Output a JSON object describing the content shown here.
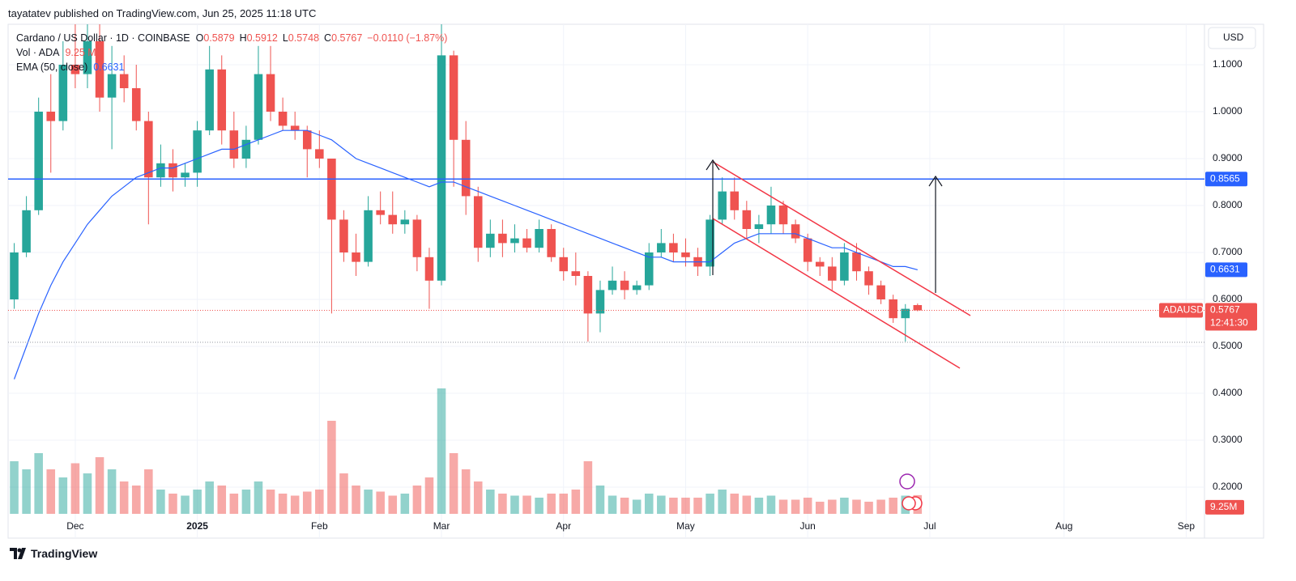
{
  "header": {
    "published": "tayatatev published on TradingView.com, Jun 25, 2025 11:18 UTC",
    "brand": "TradingView"
  },
  "chart_data": {
    "type": "candlestick",
    "legend": {
      "symbol": "Cardano / US Dollar · 1D · COINBASE",
      "o": "O",
      "h": "H",
      "l": "L",
      "c": "C",
      "change": "−0.0110 (−1.87%)",
      "vol": "Vol · ADA",
      "vol_value": "9.25 M"
    },
    "price_scale": {
      "currency": "USD",
      "symbol": "ADAUSD",
      "countdown": "12:41:30",
      "volume_label": "9.25M"
    },
    "up_color": "#26a69a",
    "down_color": "#ef5350",
    "categories": [
      null,
      null,
      null,
      null,
      null,
      "Dec",
      null,
      null,
      null,
      null,
      null,
      null,
      null,
      null,
      null,
      "2025",
      null,
      null,
      null,
      null,
      null,
      null,
      null,
      null,
      null,
      "Feb",
      null,
      null,
      null,
      null,
      null,
      null,
      null,
      null,
      null,
      "Mar",
      null,
      null,
      null,
      null,
      null,
      null,
      null,
      null,
      null,
      "Apr",
      null,
      null,
      null,
      null,
      null,
      null,
      null,
      null,
      null,
      "May",
      null,
      null,
      null,
      null,
      null,
      null,
      null,
      null,
      null,
      "Jun",
      null,
      null,
      null,
      null,
      null,
      null,
      null,
      null,
      null,
      "Jul",
      null,
      null,
      null,
      null,
      null,
      null,
      null,
      null,
      null,
      null,
      "Aug",
      null,
      null,
      null,
      null,
      null,
      null,
      null,
      null,
      null,
      "Sep",
      null
    ],
    "open": [
      0.6,
      0.7,
      0.79,
      1.0,
      0.98,
      1.1,
      1.08,
      1.15,
      1.03,
      1.08,
      1.05,
      0.98,
      0.86,
      0.89,
      0.86,
      0.87,
      0.96,
      1.09,
      0.96,
      0.9,
      0.94,
      1.08,
      1.0,
      0.97,
      0.96,
      0.92,
      0.9,
      0.77,
      0.7,
      0.68,
      0.79,
      0.78,
      0.76,
      0.77,
      0.69,
      0.64,
      1.12,
      0.94,
      0.82,
      0.71,
      0.74,
      0.72,
      0.73,
      0.71,
      0.75,
      0.69,
      0.66,
      0.65,
      0.57,
      0.62,
      0.64,
      0.62,
      0.63,
      0.7,
      0.72,
      0.7,
      0.69,
      0.67,
      0.77,
      0.83,
      0.79,
      0.75,
      0.76,
      0.8,
      0.76,
      0.73,
      0.68,
      0.67,
      0.64,
      0.7,
      0.66,
      0.63,
      0.6,
      0.56,
      0.5879,
      null,
      null,
      null,
      null,
      null,
      null,
      null,
      null,
      null,
      null,
      null,
      null,
      null,
      null,
      null,
      null,
      null,
      null,
      null,
      null,
      null,
      null,
      null
    ],
    "high": [
      0.72,
      0.82,
      1.03,
      1.08,
      1.15,
      1.19,
      1.19,
      1.19,
      1.14,
      1.12,
      1.1,
      1.0,
      0.93,
      0.92,
      0.89,
      0.98,
      1.14,
      1.12,
      1.0,
      0.97,
      1.14,
      1.14,
      1.03,
      1.0,
      0.97,
      0.96,
      0.9,
      0.79,
      0.74,
      0.82,
      0.83,
      0.83,
      0.79,
      0.78,
      0.71,
      1.19,
      1.13,
      0.98,
      0.84,
      0.77,
      0.77,
      0.76,
      0.75,
      0.77,
      0.76,
      0.71,
      0.7,
      0.66,
      0.64,
      0.67,
      0.66,
      0.64,
      0.72,
      0.75,
      0.74,
      0.73,
      0.71,
      0.78,
      0.86,
      0.86,
      0.81,
      0.78,
      0.84,
      0.81,
      0.77,
      0.74,
      0.69,
      0.69,
      0.72,
      0.72,
      0.67,
      0.64,
      0.61,
      0.59,
      0.5912,
      null,
      null,
      null,
      null,
      null,
      null,
      null,
      null,
      null,
      null,
      null,
      null,
      null,
      null,
      null,
      null,
      null,
      null,
      null,
      null,
      null,
      null,
      null
    ],
    "low": [
      0.58,
      0.69,
      0.78,
      0.87,
      0.96,
      1.05,
      1.05,
      1.0,
      0.92,
      1.02,
      0.96,
      0.76,
      0.84,
      0.83,
      0.84,
      0.84,
      0.95,
      0.93,
      0.88,
      0.88,
      0.93,
      0.98,
      0.96,
      0.94,
      0.86,
      0.88,
      0.57,
      0.68,
      0.65,
      0.67,
      0.76,
      0.74,
      0.74,
      0.66,
      0.58,
      0.63,
      0.84,
      0.78,
      0.68,
      0.69,
      0.69,
      0.7,
      0.7,
      0.7,
      0.68,
      0.64,
      0.63,
      0.51,
      0.53,
      0.61,
      0.6,
      0.61,
      0.62,
      0.69,
      0.68,
      0.67,
      0.65,
      0.65,
      0.76,
      0.77,
      0.73,
      0.72,
      0.74,
      0.74,
      0.72,
      0.66,
      0.65,
      0.62,
      0.63,
      0.64,
      0.61,
      0.59,
      0.55,
      0.51,
      0.5748,
      null,
      null,
      null,
      null,
      null,
      null,
      null,
      null,
      null,
      null,
      null,
      null,
      null,
      null,
      null,
      null,
      null,
      null,
      null,
      null,
      null,
      null,
      null
    ],
    "close": [
      0.7,
      0.79,
      1.0,
      0.98,
      1.1,
      1.08,
      1.15,
      1.03,
      1.08,
      1.05,
      0.98,
      0.86,
      0.89,
      0.86,
      0.87,
      0.96,
      1.09,
      0.96,
      0.9,
      0.94,
      1.08,
      1.0,
      0.97,
      0.96,
      0.92,
      0.9,
      0.77,
      0.7,
      0.68,
      0.79,
      0.78,
      0.76,
      0.77,
      0.69,
      0.64,
      1.12,
      0.94,
      0.82,
      0.71,
      0.74,
      0.72,
      0.73,
      0.71,
      0.75,
      0.69,
      0.66,
      0.65,
      0.57,
      0.62,
      0.64,
      0.62,
      0.63,
      0.7,
      0.72,
      0.7,
      0.69,
      0.67,
      0.77,
      0.83,
      0.79,
      0.75,
      0.76,
      0.8,
      0.76,
      0.73,
      0.68,
      0.67,
      0.64,
      0.7,
      0.66,
      0.63,
      0.6,
      0.56,
      0.58,
      0.5767,
      null,
      null,
      null,
      null,
      null,
      null,
      null,
      null,
      null,
      null,
      null,
      null,
      null,
      null,
      null,
      null,
      null,
      null,
      null,
      null,
      null,
      null,
      null
    ],
    "volume": [
      26000000,
      22000000,
      30000000,
      22000000,
      18000000,
      25000000,
      20000000,
      28000000,
      22000000,
      16000000,
      14000000,
      22000000,
      12000000,
      10000000,
      9000000,
      12000000,
      16000000,
      14000000,
      10000000,
      12000000,
      16000000,
      12000000,
      10000000,
      9000000,
      11000000,
      12000000,
      46000000,
      20000000,
      14000000,
      12000000,
      11000000,
      9000000,
      10000000,
      14000000,
      18000000,
      62000000,
      30000000,
      22000000,
      16000000,
      12000000,
      10000000,
      9000000,
      9000000,
      8000000,
      10000000,
      10000000,
      12000000,
      26000000,
      14000000,
      9000000,
      8000000,
      7000000,
      10000000,
      9000000,
      8000000,
      8000000,
      8000000,
      10000000,
      12000000,
      10000000,
      9000000,
      8000000,
      9000000,
      7000000,
      7000000,
      8000000,
      6000000,
      7000000,
      8000000,
      7000000,
      6000000,
      7000000,
      8000000,
      9000000,
      9250000,
      null,
      null,
      null,
      null,
      null,
      null,
      null,
      null,
      null,
      null,
      null,
      null,
      null,
      null,
      null,
      null,
      null,
      null,
      null,
      null,
      null,
      null,
      null
    ],
    "ema": {
      "name": "EMA (50, close)",
      "color": "#2962ff",
      "values": [
        0.43,
        0.5,
        0.57,
        0.63,
        0.68,
        0.72,
        0.76,
        0.79,
        0.82,
        0.84,
        0.86,
        0.87,
        0.88,
        0.88,
        0.89,
        0.9,
        0.91,
        0.92,
        0.92,
        0.93,
        0.94,
        0.95,
        0.96,
        0.96,
        0.96,
        0.95,
        0.94,
        0.92,
        0.9,
        0.89,
        0.88,
        0.87,
        0.86,
        0.85,
        0.84,
        0.85,
        0.85,
        0.84,
        0.83,
        0.82,
        0.81,
        0.8,
        0.79,
        0.78,
        0.77,
        0.76,
        0.75,
        0.74,
        0.73,
        0.72,
        0.71,
        0.7,
        0.69,
        0.69,
        0.68,
        0.68,
        0.68,
        0.68,
        0.7,
        0.72,
        0.73,
        0.74,
        0.74,
        0.74,
        0.74,
        0.73,
        0.72,
        0.71,
        0.71,
        0.7,
        0.69,
        0.68,
        0.67,
        0.67,
        0.6631,
        null,
        null,
        null,
        null,
        null,
        null,
        null,
        null,
        null,
        null,
        null,
        null,
        null,
        null,
        null,
        null,
        null,
        null,
        null,
        null,
        null,
        null,
        null
      ]
    },
    "hline": {
      "value": 0.8565,
      "color": "#2962ff"
    },
    "ylim": [
      0.0914,
      1.1862
    ],
    "yticks": [
      {
        "value": 0.2,
        "label": "0.2000"
      },
      {
        "value": 0.3,
        "label": "0.3000"
      },
      {
        "value": 0.4,
        "label": "0.4000"
      },
      {
        "value": 0.5,
        "label": "0.5000"
      },
      {
        "value": 0.6,
        "label": "0.6000"
      },
      {
        "value": 0.7,
        "label": "0.7000"
      },
      {
        "value": 0.8,
        "label": "0.8000"
      },
      {
        "value": 0.9,
        "label": "0.9000"
      },
      {
        "value": 1.0,
        "label": "1.0000"
      },
      {
        "value": 1.1,
        "label": "1.1000"
      }
    ],
    "volume_lim": [
      0,
      60000000
    ],
    "grid": true
  }
}
